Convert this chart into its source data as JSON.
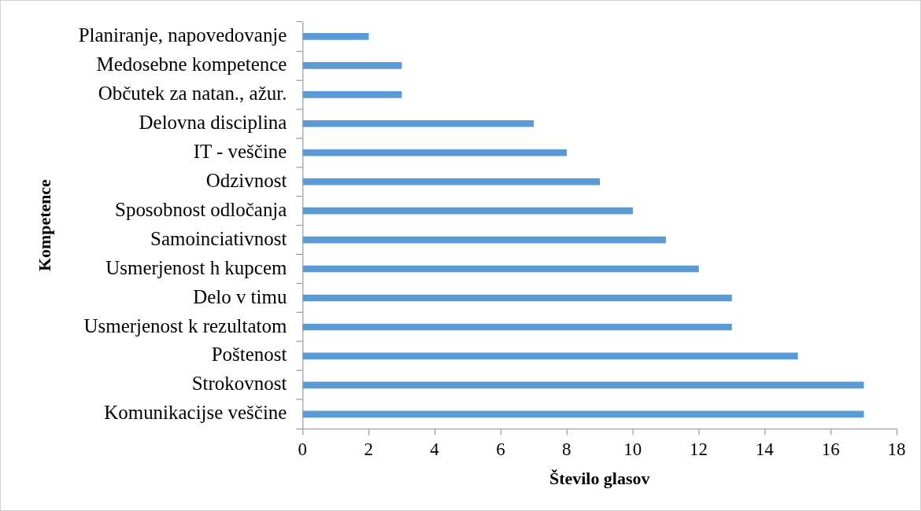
{
  "chart_data": {
    "type": "bar",
    "orientation": "horizontal",
    "xlabel": "Število glasov",
    "ylabel": "Kompetence",
    "categories": [
      "Planiranje, napovedovanje",
      "Medosebne kompetence",
      "Občutek za natan., ažur.",
      "Delovna disciplina",
      "IT - veščine",
      "Odzivnost",
      "Sposobnost odločanja",
      "Samoinciativnost",
      "Usmerjenost h kupcem",
      "Delo v timu",
      "Usmerjenost k rezultatom",
      "Poštenost",
      "Strokovnost",
      "Komunikacijse veščine"
    ],
    "values": [
      2,
      3,
      3,
      7,
      8,
      9,
      10,
      11,
      12,
      13,
      13,
      15,
      17,
      17
    ],
    "color": "#5b9bd5",
    "xlim": [
      0,
      18
    ],
    "xticks": [
      0,
      2,
      4,
      6,
      8,
      10,
      12,
      14,
      16,
      18
    ],
    "grid": false,
    "legend": false
  }
}
